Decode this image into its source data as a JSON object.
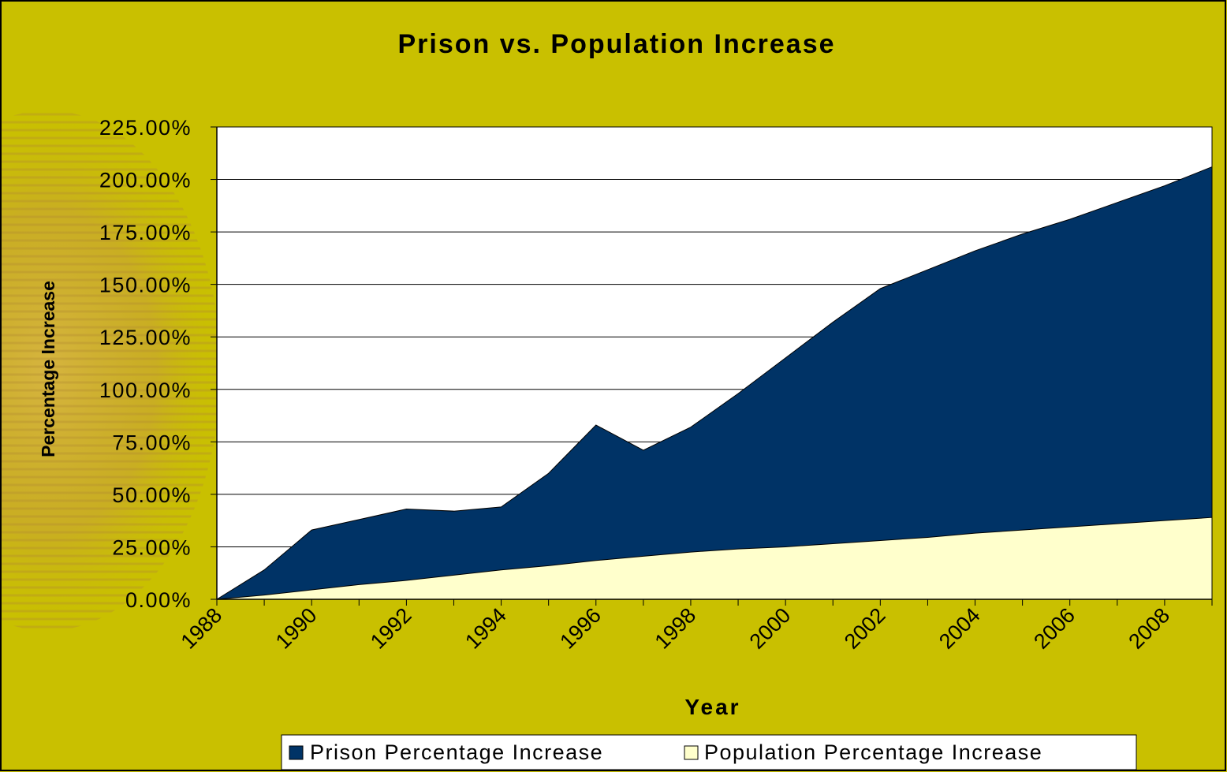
{
  "colors": {
    "background": "#c9c000",
    "plot_background": "#ffffff",
    "prison": "#003366",
    "population": "#ffffcc",
    "outline": "#000000"
  },
  "chart_data": {
    "type": "area",
    "title": "Prison vs. Population Increase",
    "xlabel": "Year",
    "ylabel": "Percentage Increase",
    "x": [
      1988,
      1989,
      1990,
      1991,
      1992,
      1993,
      1994,
      1995,
      1996,
      1997,
      1998,
      1999,
      2000,
      2001,
      2002,
      2003,
      2004,
      2005,
      2006,
      2007,
      2008,
      2009
    ],
    "xticks": [
      "1988",
      "1990",
      "1992",
      "1994",
      "1996",
      "1998",
      "2000",
      "2002",
      "2004",
      "2006",
      "2008"
    ],
    "yticks": [
      "0.00%",
      "25.00%",
      "50.00%",
      "75.00%",
      "100.00%",
      "125.00%",
      "150.00%",
      "175.00%",
      "200.00%",
      "225.00%"
    ],
    "ylim": [
      0,
      225
    ],
    "grid": true,
    "legend_position": "bottom",
    "series": [
      {
        "name": "Prison Percentage Increase",
        "color": "#003366",
        "values": [
          0,
          14,
          33,
          38,
          43,
          42,
          44,
          60,
          83,
          71,
          82,
          98,
          115,
          132,
          148,
          157,
          166,
          174,
          181,
          189,
          197,
          206
        ]
      },
      {
        "name": "Population Percentage Increase",
        "color": "#ffffcc",
        "values": [
          0,
          2,
          4.5,
          7,
          9,
          11.5,
          14,
          16,
          18.5,
          20.5,
          22.5,
          24,
          25,
          26.5,
          28,
          29.5,
          31.5,
          33,
          34.5,
          36,
          37.5,
          39
        ]
      }
    ]
  }
}
